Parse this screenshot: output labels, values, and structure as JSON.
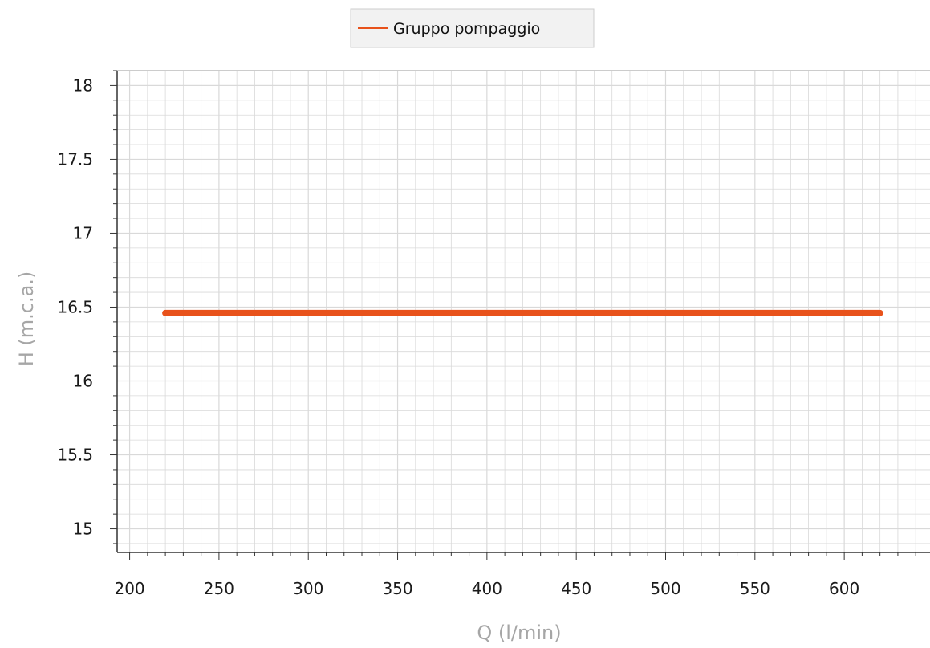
{
  "chart_data": {
    "type": "line",
    "title": "",
    "xlabel": "Q (l/min)",
    "ylabel": "H (m.c.a.)",
    "xlim": [
      193,
      648
    ],
    "ylim": [
      14.84,
      18.1
    ],
    "x_ticks": [
      200,
      250,
      300,
      350,
      400,
      450,
      500,
      550,
      600
    ],
    "y_ticks": [
      15,
      15.5,
      16,
      16.5,
      17,
      17.5,
      18
    ],
    "x_tick_labels": [
      "200",
      "250",
      "300",
      "350",
      "400",
      "450",
      "500",
      "550",
      "600"
    ],
    "y_tick_labels": [
      "15",
      "15.5",
      "16",
      "16.5",
      "17",
      "17.5",
      "18"
    ],
    "x_minor_step": 10,
    "y_minor_step": 0.1,
    "grid": true,
    "legend_position": "top-center",
    "series": [
      {
        "name": "Gruppo pompaggio",
        "color": "#e8521b",
        "x": [
          220,
          620
        ],
        "y": [
          16.46,
          16.46
        ]
      }
    ]
  },
  "colors": {
    "series": "#e8521b",
    "grid": "#d9d9d9",
    "axis": "#333333",
    "axis_label": "#a6a6a6",
    "legend_bg": "#f2f2f2",
    "legend_border": "#cccccc"
  }
}
